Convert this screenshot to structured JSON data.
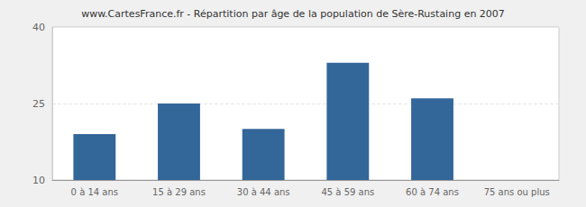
{
  "chart_data": {
    "type": "bar",
    "title": "www.CartesFrance.fr - Répartition par âge de la population de Sère-Rustaing en 2007",
    "categories": [
      "0 à 14 ans",
      "15 à 29 ans",
      "30 à 44 ans",
      "45 à 59 ans",
      "60 à 74 ans",
      "75 ans ou plus"
    ],
    "values": [
      19,
      25,
      20,
      33,
      26,
      10
    ],
    "color": "#336699",
    "ylim": [
      10,
      40
    ],
    "yticks": [
      10,
      25,
      40
    ],
    "grid": true
  }
}
